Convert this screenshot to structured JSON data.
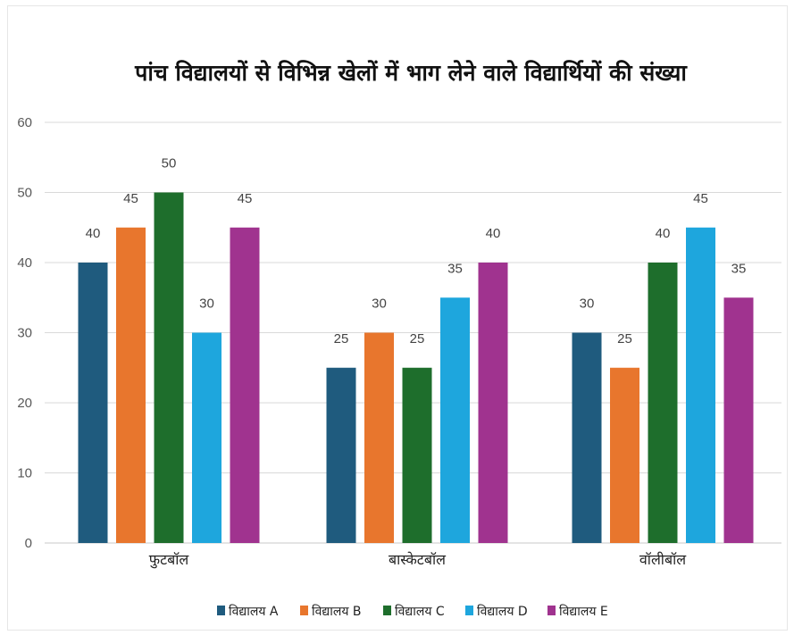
{
  "chart_data": {
    "type": "bar",
    "title": "पांच विद्यालयों से विभिन्न खेलों में भाग लेने वाले विद्यार्थियों की संख्या",
    "xlabel": "",
    "ylabel": "",
    "categories": [
      "फुटबॉल",
      "बास्केटबॉल",
      "वॉलीबॉल"
    ],
    "ylim": [
      0,
      60
    ],
    "yticks": [
      "0",
      "10",
      "20",
      "30",
      "40",
      "50",
      "60"
    ],
    "grid": true,
    "legend_position": "bottom",
    "series": [
      {
        "name": "विद्यालय A",
        "color": "#1f5b7e",
        "values": [
          40,
          25,
          30
        ]
      },
      {
        "name": "विद्यालय B",
        "color": "#e8762d",
        "values": [
          45,
          30,
          25
        ]
      },
      {
        "name": "विद्यालय C",
        "color": "#1e6e2c",
        "values": [
          50,
          25,
          40
        ]
      },
      {
        "name": "विद्यालय D",
        "color": "#1ea6dd",
        "values": [
          30,
          35,
          45
        ]
      },
      {
        "name": "विद्यालय E",
        "color": "#a0338f",
        "values": [
          45,
          40,
          35
        ]
      }
    ]
  }
}
